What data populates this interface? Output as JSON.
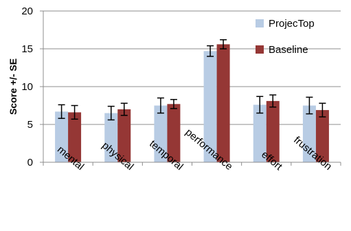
{
  "chart_data": {
    "type": "bar",
    "title": "",
    "xlabel": "",
    "ylabel": "Score +/- SE",
    "ylim": [
      0,
      20
    ],
    "yticks": [
      0,
      5,
      10,
      15,
      20
    ],
    "grid": true,
    "legend_position": "top-right",
    "categories": [
      "mental",
      "physical",
      "temporal",
      "performance",
      "effort",
      "frustration"
    ],
    "series": [
      {
        "name": "ProjecTop",
        "color": "#b8cce4",
        "values": [
          6.7,
          6.5,
          7.5,
          14.7,
          7.6,
          7.5
        ],
        "errors": [
          0.9,
          0.9,
          1.0,
          0.7,
          1.1,
          1.1
        ]
      },
      {
        "name": "Baseline",
        "color": "#953735",
        "values": [
          6.6,
          7.0,
          7.7,
          15.6,
          8.1,
          6.9
        ],
        "errors": [
          0.9,
          0.8,
          0.6,
          0.6,
          0.8,
          0.9
        ]
      }
    ]
  }
}
